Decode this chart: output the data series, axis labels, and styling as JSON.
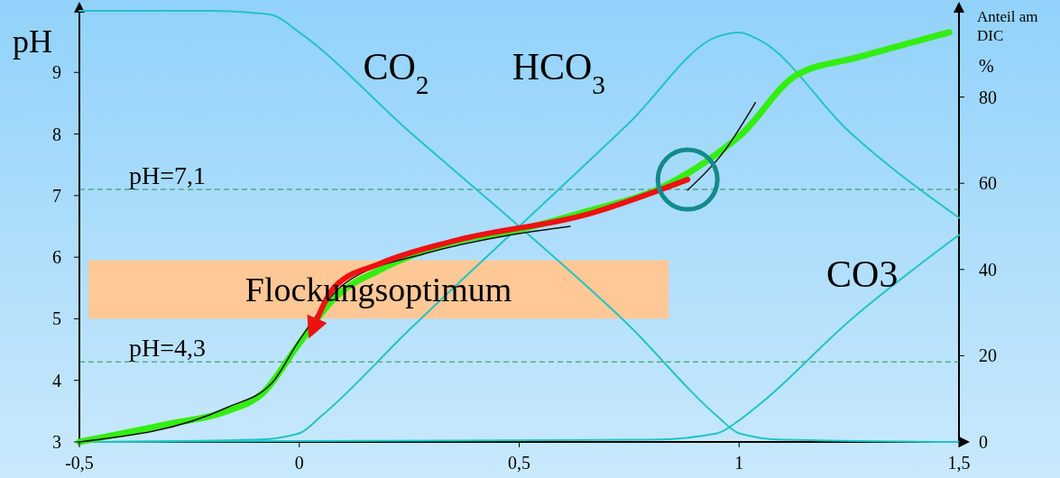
{
  "chart_data": {
    "type": "line",
    "ylabel": "pH",
    "y2label": "Anteil am DIC %",
    "xlim": [
      -0.5,
      1.5
    ],
    "xticks": [
      {
        "value": -0.5,
        "label": "-0,5"
      },
      0,
      {
        "value": 0.5,
        "label": "0,5"
      },
      1,
      {
        "value": 1.5,
        "label": "1,5"
      }
    ],
    "ylim": [
      3,
      10
    ],
    "yticks": [
      3,
      4,
      5,
      6,
      7,
      8,
      9
    ],
    "y2lim": [
      0,
      100
    ],
    "y2ticks": [
      0,
      20,
      40,
      60,
      80
    ],
    "grid": false,
    "series": [
      {
        "name": "CO$_{2}$",
        "axis": "y2",
        "color": "#22c4c4",
        "x": [
          -0.5,
          -0.2,
          -0.1,
          -0.06,
          0,
          0.25,
          0.5,
          0.75,
          0.95,
          1.0,
          1.1,
          1.5
        ],
        "values": [
          100,
          100,
          99.5,
          99,
          95,
          72,
          50,
          27,
          6,
          2,
          0.5,
          0
        ]
      },
      {
        "name": "HCO$_{3}$",
        "axis": "y2",
        "color": "#22c4c4",
        "x": [
          -0.5,
          -0.1,
          0,
          0.05,
          0.25,
          0.5,
          0.75,
          0.95,
          1.0,
          1.05,
          1.25,
          1.5
        ],
        "values": [
          0,
          0.5,
          2,
          6,
          26,
          50,
          74,
          94,
          95,
          93,
          72,
          52
        ]
      },
      {
        "name": "CO3",
        "axis": "y2",
        "color": "#22c4c4",
        "x": [
          -0.5,
          0.8,
          0.95,
          1.0,
          1.05,
          1.25,
          1.5
        ],
        "values": [
          0,
          0.5,
          2,
          5,
          9,
          28,
          48
        ]
      },
      {
        "axis": "y",
        "color": "#33ee11",
        "x": [
          -0.5,
          -0.298,
          -0.164,
          -0.082,
          0,
          0.082,
          0.185,
          0.349,
          0.503,
          0.657,
          0.821,
          0.924,
          1.006,
          1.129,
          1.273,
          1.478
        ],
        "values": [
          3.0,
          3.29,
          3.5,
          3.8,
          4.6,
          5.35,
          5.8,
          6.24,
          6.45,
          6.75,
          7.12,
          7.55,
          8.0,
          8.95,
          9.25,
          9.65
        ]
      },
      {
        "axis": "y",
        "color": "#111111",
        "line_style": "solid",
        "x": [
          -0.5,
          -0.164,
          -0.062,
          0,
          0.103,
          0.287,
          0.472,
          0.616,
          0.72,
          0.8,
          0.883,
          0.965,
          1.037
        ],
        "values": [
          3.0,
          3.56,
          3.96,
          4.65,
          5.57,
          6.06,
          6.35,
          6.5,
          null,
          null,
          7.09,
          7.71,
          8.51
        ]
      },
      {
        "axis": "y",
        "color": "#ee1111",
        "x": [
          0.883,
          0.657,
          0.349,
          0.185,
          0.082,
          0.031
        ],
        "values": [
          7.26,
          6.7,
          6.26,
          5.9,
          5.53,
          4.84
        ]
      }
    ],
    "ref_lines": [
      {
        "axis": "y",
        "value": 7.1,
        "label": "pH=7,1",
        "color": "#2e8b57",
        "line_style": "dashed"
      },
      {
        "axis": "y",
        "value": 4.3,
        "label": "pH=4,3",
        "color": "#2e8b57",
        "line_style": "dashed"
      }
    ],
    "bands": [
      {
        "axis": "y",
        "from": 5,
        "to": 5.95,
        "label": "Flockungsoptimum",
        "color": "#ffc896"
      }
    ]
  }
}
